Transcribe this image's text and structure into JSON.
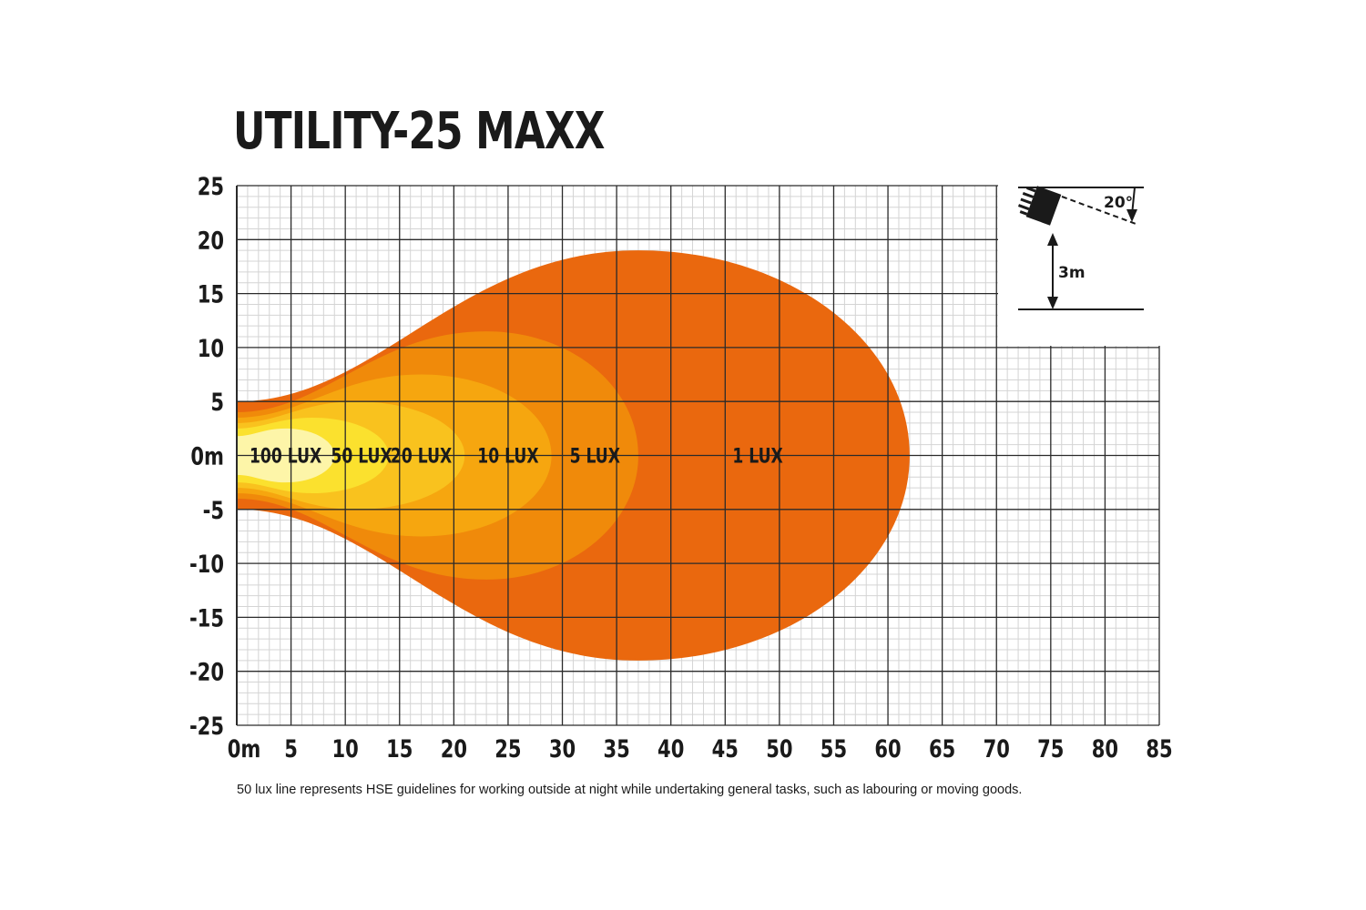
{
  "chart_data": {
    "type": "area",
    "title": "UTILITY-25 MAXX",
    "x_ticks": [
      "0m",
      "5",
      "10",
      "15",
      "20",
      "25",
      "30",
      "35",
      "40",
      "45",
      "50",
      "55",
      "60",
      "65",
      "70",
      "75",
      "80",
      "85"
    ],
    "y_ticks": [
      "25",
      "20",
      "15",
      "10",
      "5",
      "0m",
      "-5",
      "-10",
      "-15",
      "-20",
      "-25"
    ],
    "xlim": [
      0,
      85
    ],
    "ylim": [
      -25,
      25
    ],
    "grid": true,
    "zones": [
      {
        "label": "1 LUX",
        "x_start": 0,
        "x_end": 62,
        "x_widest": 37,
        "half_width": 19,
        "half_width_at_source": 5,
        "color": "#EA680E"
      },
      {
        "label": "5 LUX",
        "x_start": 0,
        "x_end": 37,
        "x_widest": 23,
        "half_width": 11.5,
        "half_width_at_source": 4,
        "color": "#F08A0A"
      },
      {
        "label": "10 LUX",
        "x_start": 0,
        "x_end": 29,
        "x_widest": 17,
        "half_width": 7.5,
        "half_width_at_source": 3.5,
        "color": "#F6A60F"
      },
      {
        "label": "20 LUX",
        "x_start": 0,
        "x_end": 21,
        "x_widest": 11,
        "half_width": 5,
        "half_width_at_source": 3,
        "color": "#F9C21E"
      },
      {
        "label": "50 LUX",
        "x_start": 0,
        "x_end": 14,
        "x_widest": 7,
        "half_width": 3.5,
        "half_width_at_source": 2.5,
        "color": "#FBE12E"
      },
      {
        "label": "100 LUX",
        "x_start": 0,
        "x_end": 9,
        "x_widest": 4.5,
        "half_width": 2.5,
        "half_width_at_source": 1.8,
        "color": "#FDF5A8"
      }
    ],
    "zone_label_positions_x": [
      48,
      33,
      25,
      17,
      11.5,
      4.5
    ],
    "inset": {
      "angle_label": "20°",
      "height_label": "3m"
    }
  },
  "footnote": "50 lux line represents HSE guidelines for working outside at night while undertaking general tasks, such as labouring or moving goods."
}
